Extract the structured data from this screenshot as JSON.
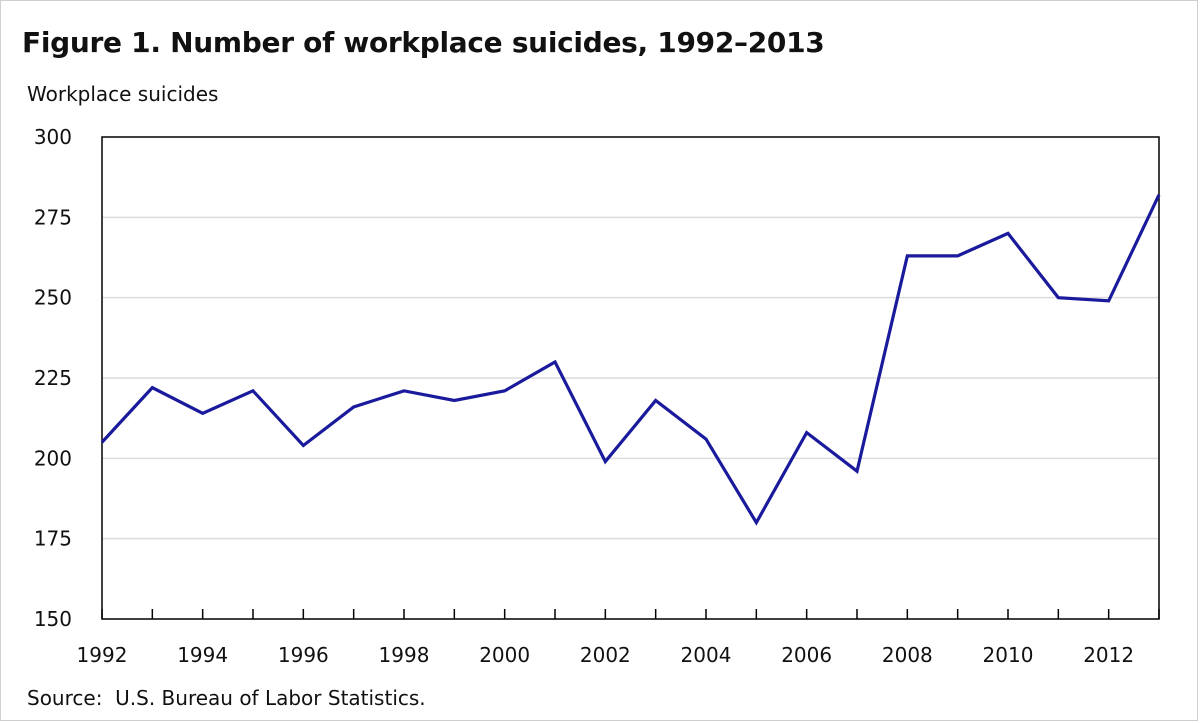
{
  "title": "Figure 1. Number of workplace suicides, 1992–2013",
  "source": "Source:  U.S. Bureau of Labor Statistics.",
  "chart_data": {
    "type": "line",
    "title": "Figure 1. Number of workplace suicides, 1992–2013",
    "xlabel": "",
    "ylabel": "Workplace suicides",
    "x": [
      1992,
      1993,
      1994,
      1995,
      1996,
      1997,
      1998,
      1999,
      2000,
      2001,
      2002,
      2003,
      2004,
      2005,
      2006,
      2007,
      2008,
      2009,
      2010,
      2011,
      2012,
      2013
    ],
    "series": [
      {
        "values": [
          205,
          222,
          214,
          221,
          204,
          216,
          221,
          218,
          221,
          230,
          199,
          218,
          206,
          180,
          208,
          196,
          263,
          263,
          270,
          250,
          249,
          282
        ],
        "color": "#1a1a9c"
      }
    ],
    "xlim": [
      1992,
      2013
    ],
    "ylim": [
      150,
      300
    ],
    "yticks": [
      150,
      175,
      200,
      225,
      250,
      275,
      300
    ],
    "xtick_labels": [
      "1992",
      "1994",
      "1996",
      "1998",
      "2000",
      "2002",
      "2004",
      "2006",
      "2008",
      "2010",
      "2012"
    ],
    "grid": true,
    "legend": "none"
  }
}
